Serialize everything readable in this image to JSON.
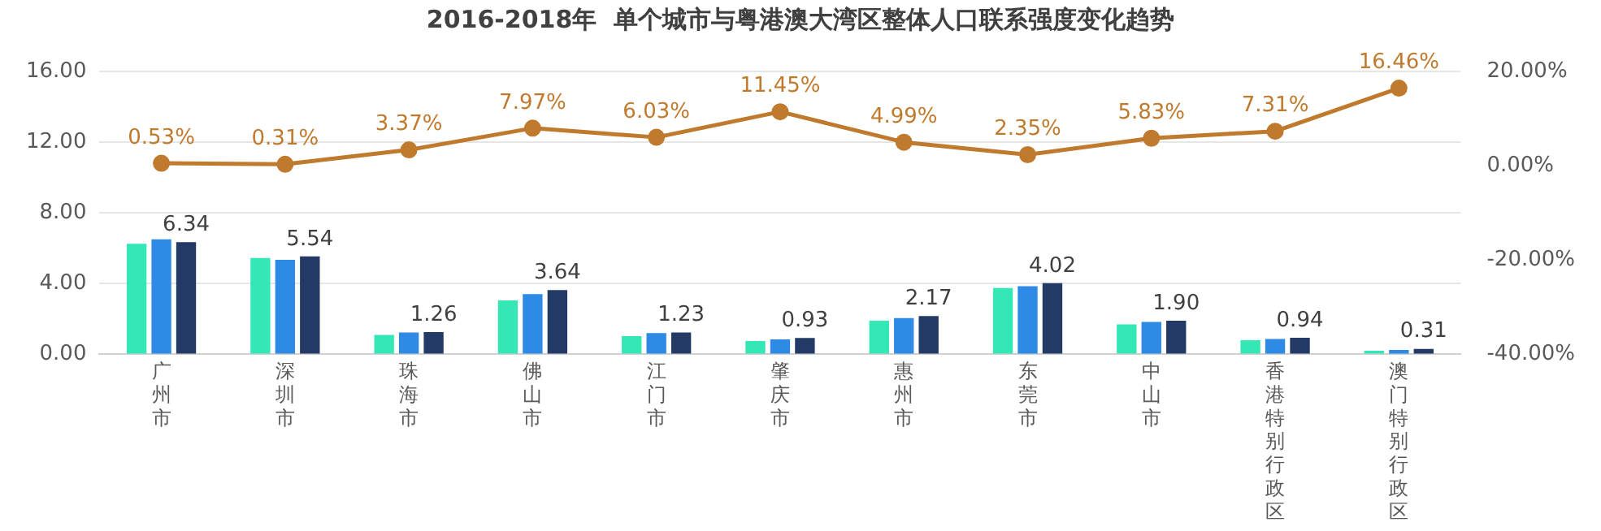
{
  "chart_data": {
    "type": "bar",
    "title": "2016-2018年  单个城市与粤港澳大湾区整体人口联系强度变化趋势",
    "categories": [
      "广州市",
      "深圳市",
      "珠海市",
      "佛山市",
      "江门市",
      "肇庆市",
      "惠州市",
      "东莞市",
      "中山市",
      "香港特别行政区",
      "澳门特别行政区"
    ],
    "series": [
      {
        "color": "#33e8b4",
        "values": [
          6.25,
          5.45,
          1.1,
          3.05,
          1.03,
          0.75,
          1.9,
          3.75,
          1.7,
          0.8,
          0.2
        ]
      },
      {
        "color": "#2f8ae6",
        "values": [
          6.5,
          5.35,
          1.23,
          3.4,
          1.2,
          0.85,
          2.05,
          3.85,
          1.83,
          0.87,
          0.25
        ]
      },
      {
        "color": "#233a66",
        "values": [
          6.34,
          5.54,
          1.26,
          3.64,
          1.23,
          0.93,
          2.17,
          4.02,
          1.9,
          0.94,
          0.31
        ],
        "value_labels": [
          "6.34",
          "5.54",
          "1.26",
          "3.64",
          "1.23",
          "0.93",
          "2.17",
          "4.02",
          "1.90",
          "0.94",
          "0.31"
        ]
      },
      {
        "type": "line",
        "axis": "y2",
        "color": "#c07a2e",
        "marker": "circle",
        "values": [
          0.53,
          0.31,
          3.37,
          7.97,
          6.03,
          11.45,
          4.99,
          2.35,
          5.83,
          7.31,
          16.46
        ],
        "value_labels": [
          "0.53%",
          "0.31%",
          "3.37%",
          "7.97%",
          "6.03%",
          "11.45%",
          "4.99%",
          "2.35%",
          "5.83%",
          "7.31%",
          "16.46%"
        ]
      }
    ],
    "ylim": [
      0,
      16
    ],
    "yticks": [
      {
        "value": 0,
        "label": "0.00"
      },
      {
        "value": 4,
        "label": "4.00"
      },
      {
        "value": 8,
        "label": "8.00"
      },
      {
        "value": 12,
        "label": "12.00"
      },
      {
        "value": 16,
        "label": "16.00"
      }
    ],
    "y2lim": [
      -40,
      20
    ],
    "y2ticks": [
      {
        "value": -40,
        "label": "-40.00%"
      },
      {
        "value": -20,
        "label": "-20.00%"
      },
      {
        "value": 0,
        "label": "0.00%"
      },
      {
        "value": 20,
        "label": "20.00%"
      }
    ],
    "grid": "y",
    "legend": false
  }
}
